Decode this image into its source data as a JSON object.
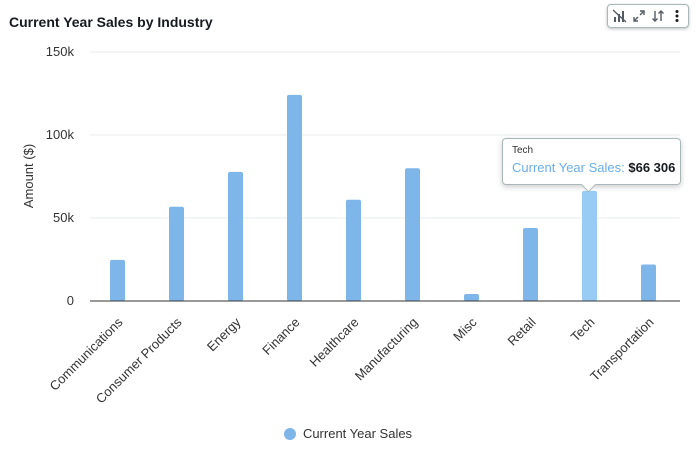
{
  "header": {
    "title": "Current Year Sales by Industry"
  },
  "toolbar": {
    "icons": [
      "exclude-visual-icon",
      "expand-icon",
      "sort-icon",
      "more-options-icon"
    ]
  },
  "tooltip": {
    "category": "Tech",
    "series_label": "Current Year Sales:",
    "value_text": "$66 306"
  },
  "colors": {
    "bar": "#7eb6ea",
    "bar_highlight": "#99ccf5",
    "grid": "#e9ebed",
    "axis": "#333333"
  },
  "chart_data": {
    "type": "bar",
    "title": "Current Year Sales by Industry",
    "xlabel": "",
    "ylabel": "Amount ($)",
    "ylim": [
      0,
      150000
    ],
    "yticks": [
      0,
      50000,
      100000,
      150000
    ],
    "ytick_labels": [
      "0",
      "50k",
      "100k",
      "150k"
    ],
    "categories": [
      "Communications",
      "Consumer Products",
      "Energy",
      "Finance",
      "Healthcare",
      "Manufacturing",
      "Misc",
      "Retail",
      "Tech",
      "Transportation"
    ],
    "series": [
      {
        "name": "Current Year Sales",
        "values": [
          24800,
          56800,
          77800,
          124200,
          61000,
          80000,
          4200,
          44000,
          66306,
          22000
        ]
      }
    ],
    "highlighted_category": "Tech",
    "legend": "bottom-center",
    "grid": true
  }
}
